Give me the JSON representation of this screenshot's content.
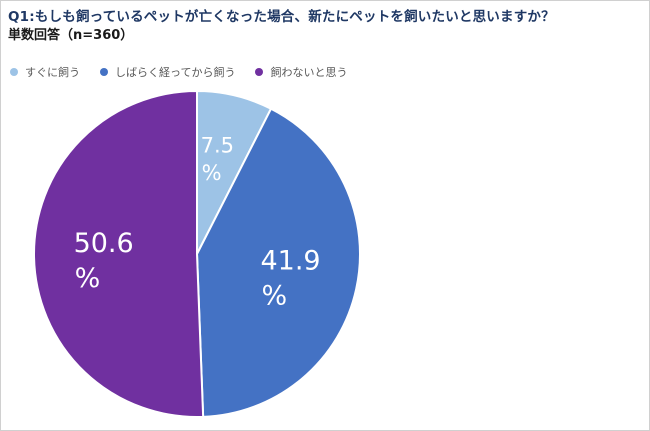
{
  "title": "Q1:もしも飼っているペットが亡くなった場合、新たにペットを飼いたいと思いますか？",
  "subtitle": "単数回答（n=360）",
  "chart_data": {
    "type": "pie",
    "title": "Q1:もしも飼っているペットが亡くなった場合、新たにペットを飼いたいと思いますか？",
    "subtitle": "単数回答（n=360）",
    "legend_position": "top-left",
    "slices": [
      {
        "name": "すぐに飼う",
        "value": 7.5,
        "label_value": "7.5",
        "label_unit": "%",
        "color": "#9dc3e6"
      },
      {
        "name": "しばらく経ってから飼う",
        "value": 41.9,
        "label_value": "41.9",
        "label_unit": "%",
        "color": "#4472c4"
      },
      {
        "name": "飼わないと思う",
        "value": 50.6,
        "label_value": "50.6",
        "label_unit": "%",
        "color": "#7030a0"
      }
    ]
  }
}
